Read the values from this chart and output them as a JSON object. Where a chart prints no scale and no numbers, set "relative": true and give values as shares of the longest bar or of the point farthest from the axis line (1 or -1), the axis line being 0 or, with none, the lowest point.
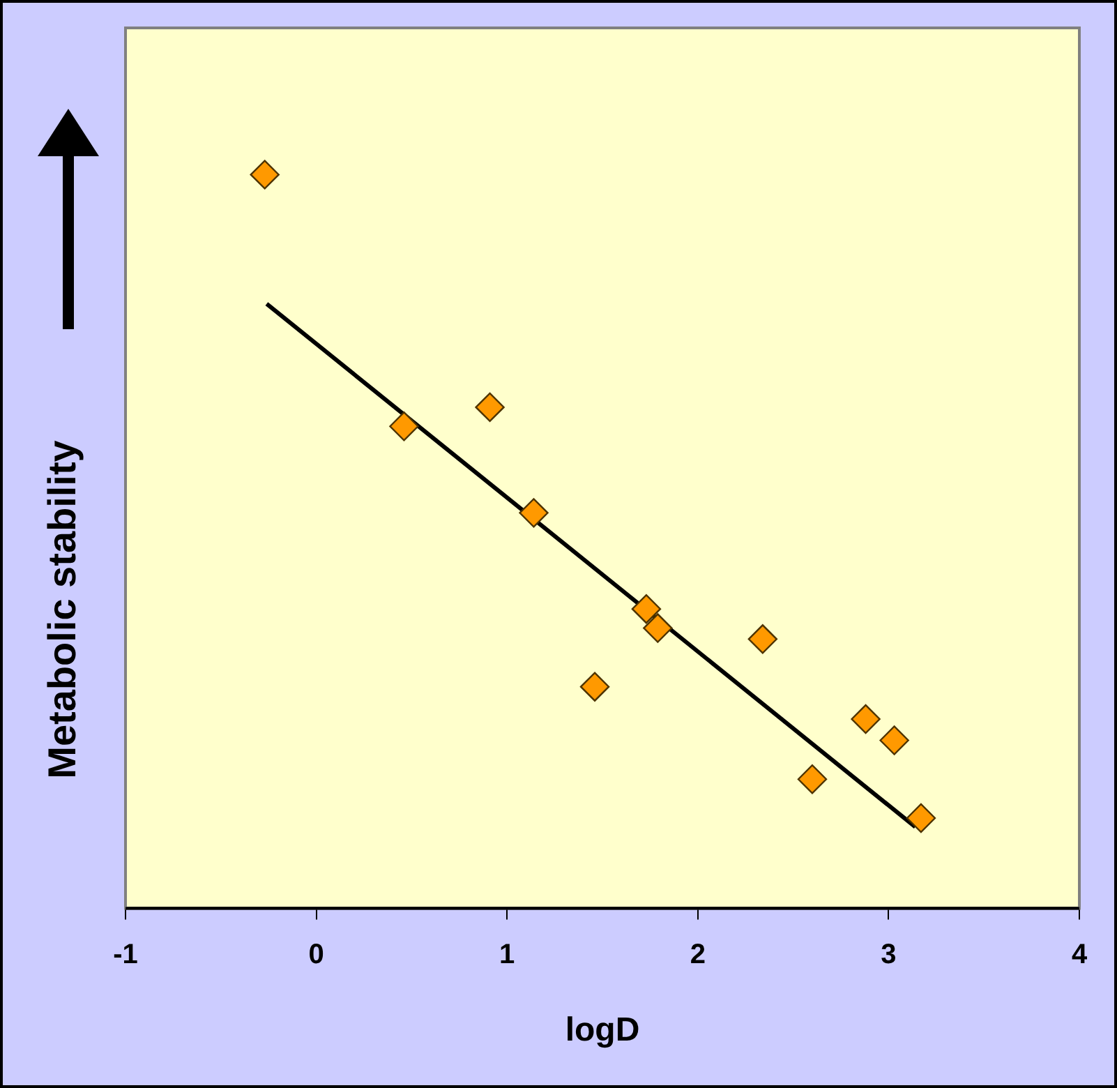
{
  "chart_data": {
    "type": "scatter",
    "xlabel": "logD",
    "ylabel": "Metabolic stability",
    "relative": true,
    "xlim": [
      -1,
      4
    ],
    "xticks": [
      -1,
      0,
      1,
      2,
      3,
      4
    ],
    "grid": false,
    "legend": false,
    "marker": "diamond",
    "series": [
      {
        "type": "scatter",
        "color": "#ff9900",
        "x": [
          -0.27,
          0.46,
          0.91,
          1.14,
          1.46,
          1.73,
          1.79,
          2.34,
          2.6,
          2.88,
          3.03,
          3.17
        ],
        "values": [
          1,
          0.657,
          0.683,
          0.539,
          0.302,
          0.408,
          0.382,
          0.367,
          0.176,
          0.258,
          0.229,
          0.123
        ]
      },
      {
        "type": "line",
        "color": "#000000",
        "line_style": "solid",
        "marker": "none",
        "x": [
          -0.26,
          3.14
        ],
        "values": [
          0.824,
          0.111
        ]
      }
    ]
  }
}
